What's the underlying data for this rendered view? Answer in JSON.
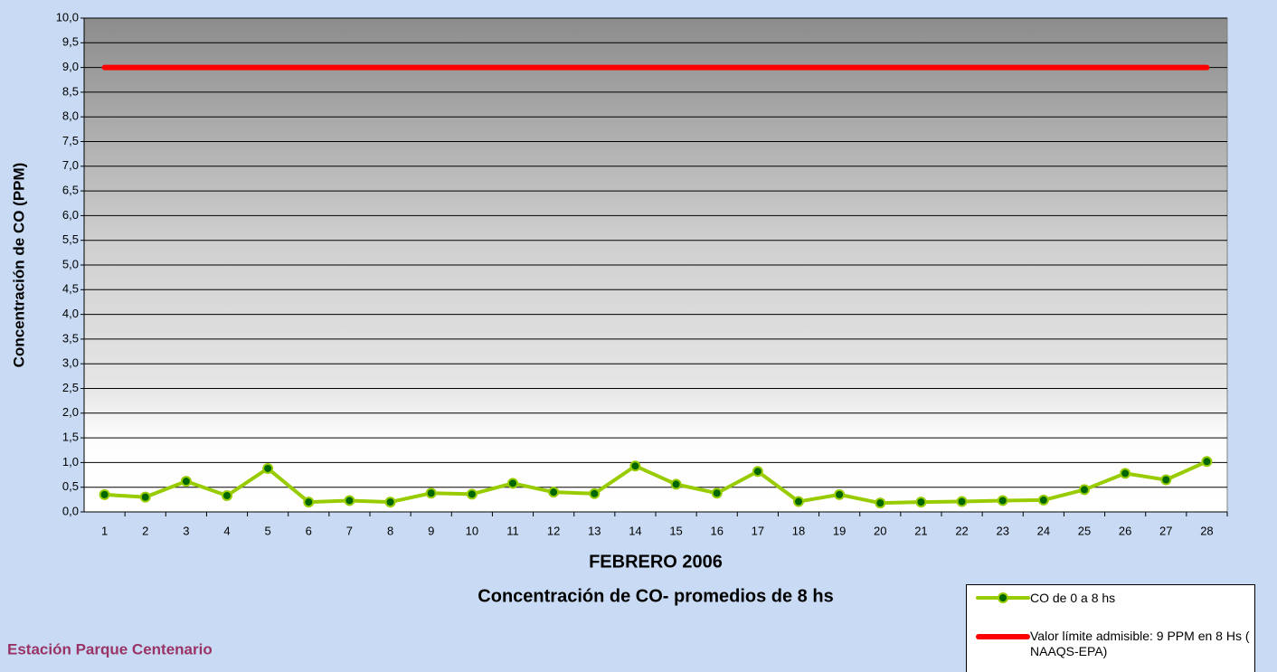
{
  "chart_data": {
    "type": "line",
    "title": "Concentración de CO- promedios de 8 hs",
    "x_label": "FEBRERO 2006",
    "y_label": "Concentración de CO (PPM)",
    "annotation": "Estación Parque Centenario",
    "categories": [
      "1",
      "2",
      "3",
      "4",
      "5",
      "6",
      "7",
      "8",
      "9",
      "10",
      "11",
      "12",
      "13",
      "14",
      "15",
      "16",
      "17",
      "18",
      "19",
      "20",
      "21",
      "22",
      "23",
      "24",
      "25",
      "26",
      "27",
      "28"
    ],
    "series": [
      {
        "name": "CO de 0 a 8 hs",
        "color": "#99cc00",
        "marker_color": "#006600",
        "values": [
          0.35,
          0.3,
          0.62,
          0.33,
          0.88,
          0.2,
          0.23,
          0.2,
          0.38,
          0.36,
          0.58,
          0.4,
          0.37,
          0.93,
          0.56,
          0.38,
          0.82,
          0.21,
          0.35,
          0.18,
          0.2,
          0.21,
          0.23,
          0.24,
          0.45,
          0.78,
          0.65,
          1.02
        ]
      },
      {
        "name": "Valor límite admisible: 9 PPM en 8 Hs ( NAAQS-EPA)",
        "color": "#ff0000",
        "values": [
          9,
          9,
          9,
          9,
          9,
          9,
          9,
          9,
          9,
          9,
          9,
          9,
          9,
          9,
          9,
          9,
          9,
          9,
          9,
          9,
          9,
          9,
          9,
          9,
          9,
          9,
          9,
          9
        ]
      }
    ],
    "ylim": [
      0,
      10
    ],
    "yticks": [
      {
        "value": 0,
        "label": "0,0"
      },
      {
        "value": 0.5,
        "label": "0,5"
      },
      {
        "value": 1,
        "label": "1,0"
      },
      {
        "value": 1.5,
        "label": "1,5"
      },
      {
        "value": 2,
        "label": "2,0"
      },
      {
        "value": 2.5,
        "label": "2,5"
      },
      {
        "value": 3,
        "label": "3,0"
      },
      {
        "value": 3.5,
        "label": "3,5"
      },
      {
        "value": 4,
        "label": "4,0"
      },
      {
        "value": 4.5,
        "label": "4,5"
      },
      {
        "value": 5,
        "label": "5,0"
      },
      {
        "value": 5.5,
        "label": "5,5"
      },
      {
        "value": 6,
        "label": "6,0"
      },
      {
        "value": 6.5,
        "label": "6,5"
      },
      {
        "value": 7,
        "label": "7,0"
      },
      {
        "value": 7.5,
        "label": "7,5"
      },
      {
        "value": 8,
        "label": "8,0"
      },
      {
        "value": 8.5,
        "label": "8,5"
      },
      {
        "value": 9,
        "label": "9,0"
      },
      {
        "value": 9.5,
        "label": "9,5"
      },
      {
        "value": 10,
        "label": "10,0"
      }
    ],
    "grid": true
  }
}
